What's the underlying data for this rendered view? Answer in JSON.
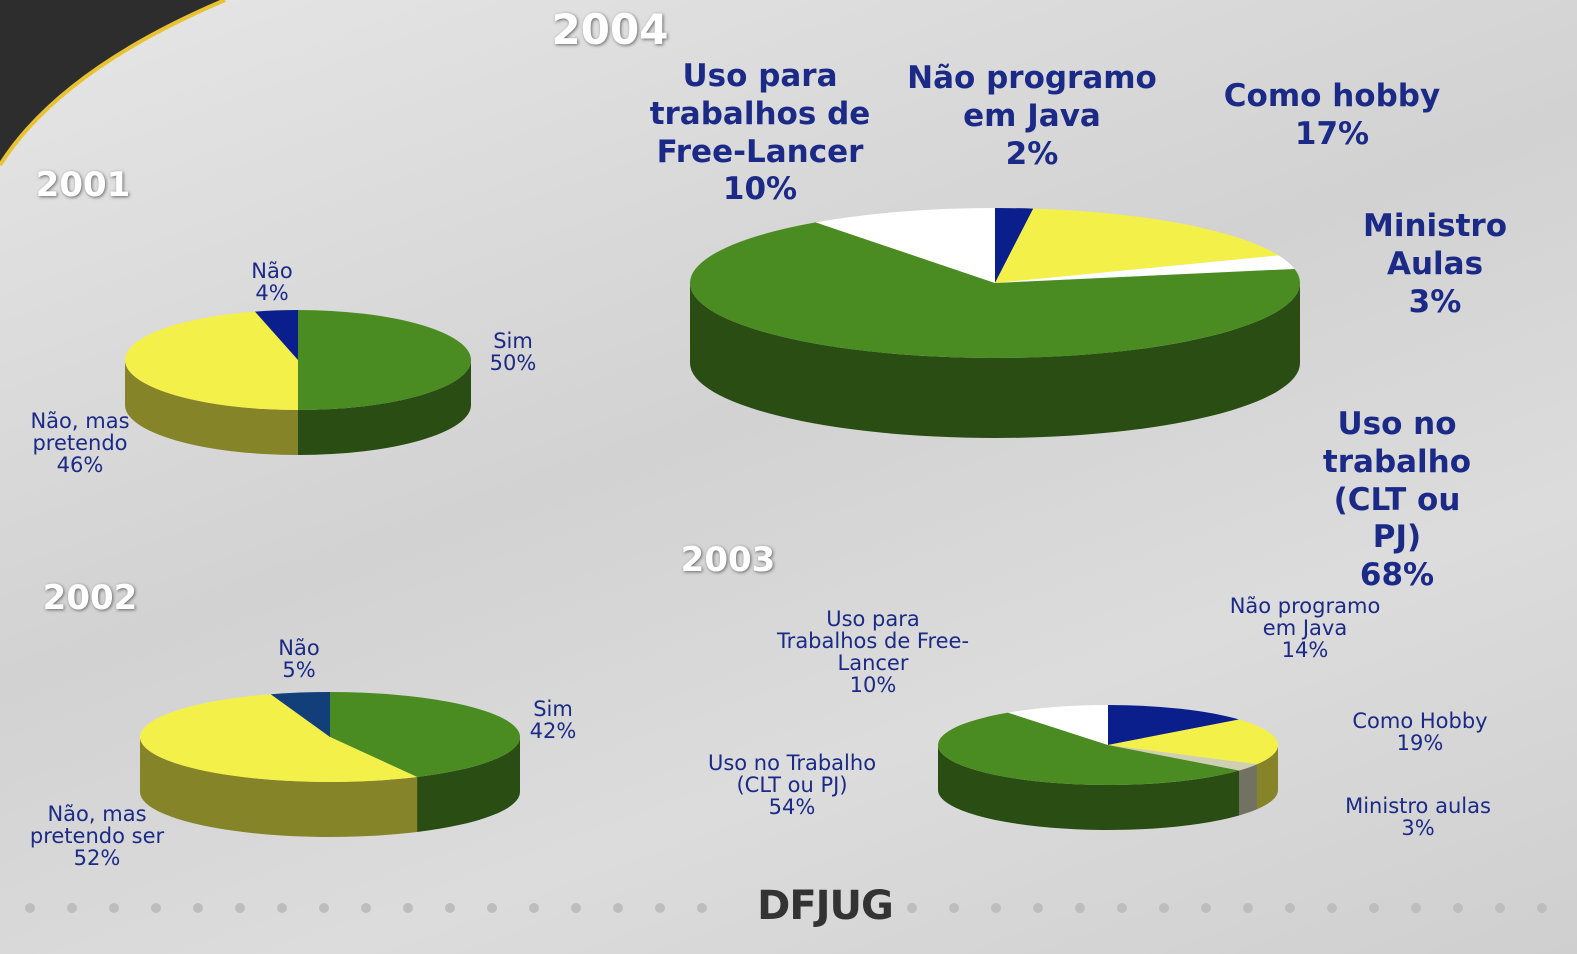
{
  "chart_data": [
    {
      "type": "pie",
      "title": "2001",
      "categories": [
        "Sim",
        "Não, mas\npretendo",
        "Não"
      ],
      "values": [
        50,
        46,
        4
      ],
      "value_labels": [
        "50%",
        "46%",
        "4%"
      ],
      "colors": [
        "#4a8c22",
        "#f4f04a",
        "#0b1f8c"
      ]
    },
    {
      "type": "pie",
      "title": "2002",
      "categories": [
        "Sim",
        "Não, mas\npretendo ser",
        "Não"
      ],
      "values": [
        42,
        52,
        5
      ],
      "value_labels": [
        "42%",
        "52%",
        "5%"
      ],
      "colors": [
        "#4a8c22",
        "#f4f04a",
        "#123f7a"
      ]
    },
    {
      "type": "pie",
      "title": "2004",
      "categories": [
        "Não programo\nem Java",
        "Como hobby",
        "Ministro Aulas",
        "Uso no trabalho\n(CLT ou PJ)",
        "Uso para\ntrabalhos de\nFree-Lancer"
      ],
      "values": [
        2,
        17,
        3,
        68,
        10
      ],
      "value_labels": [
        "2%",
        "17%",
        "3%",
        "68%",
        "10%"
      ],
      "colors": [
        "#0b1f8c",
        "#f4f04a",
        "#ffffff",
        "#4a8c22",
        "#ffffff"
      ]
    },
    {
      "type": "pie",
      "title": "2003",
      "categories": [
        "Não programo\nem Java",
        "Como Hobby",
        "Ministro aulas",
        "Uso no Trabalho\n(CLT ou PJ)",
        "Uso para\nTrabalhos de Free-\nLancer"
      ],
      "values": [
        14,
        19,
        3,
        54,
        10
      ],
      "value_labels": [
        "14%",
        "19%",
        "3%",
        "54%",
        "10%"
      ],
      "colors": [
        "#0b1f8c",
        "#f4f04a",
        "#cfcfb4",
        "#4a8c22",
        "#ffffff"
      ]
    }
  ],
  "logo": "DFJUG"
}
